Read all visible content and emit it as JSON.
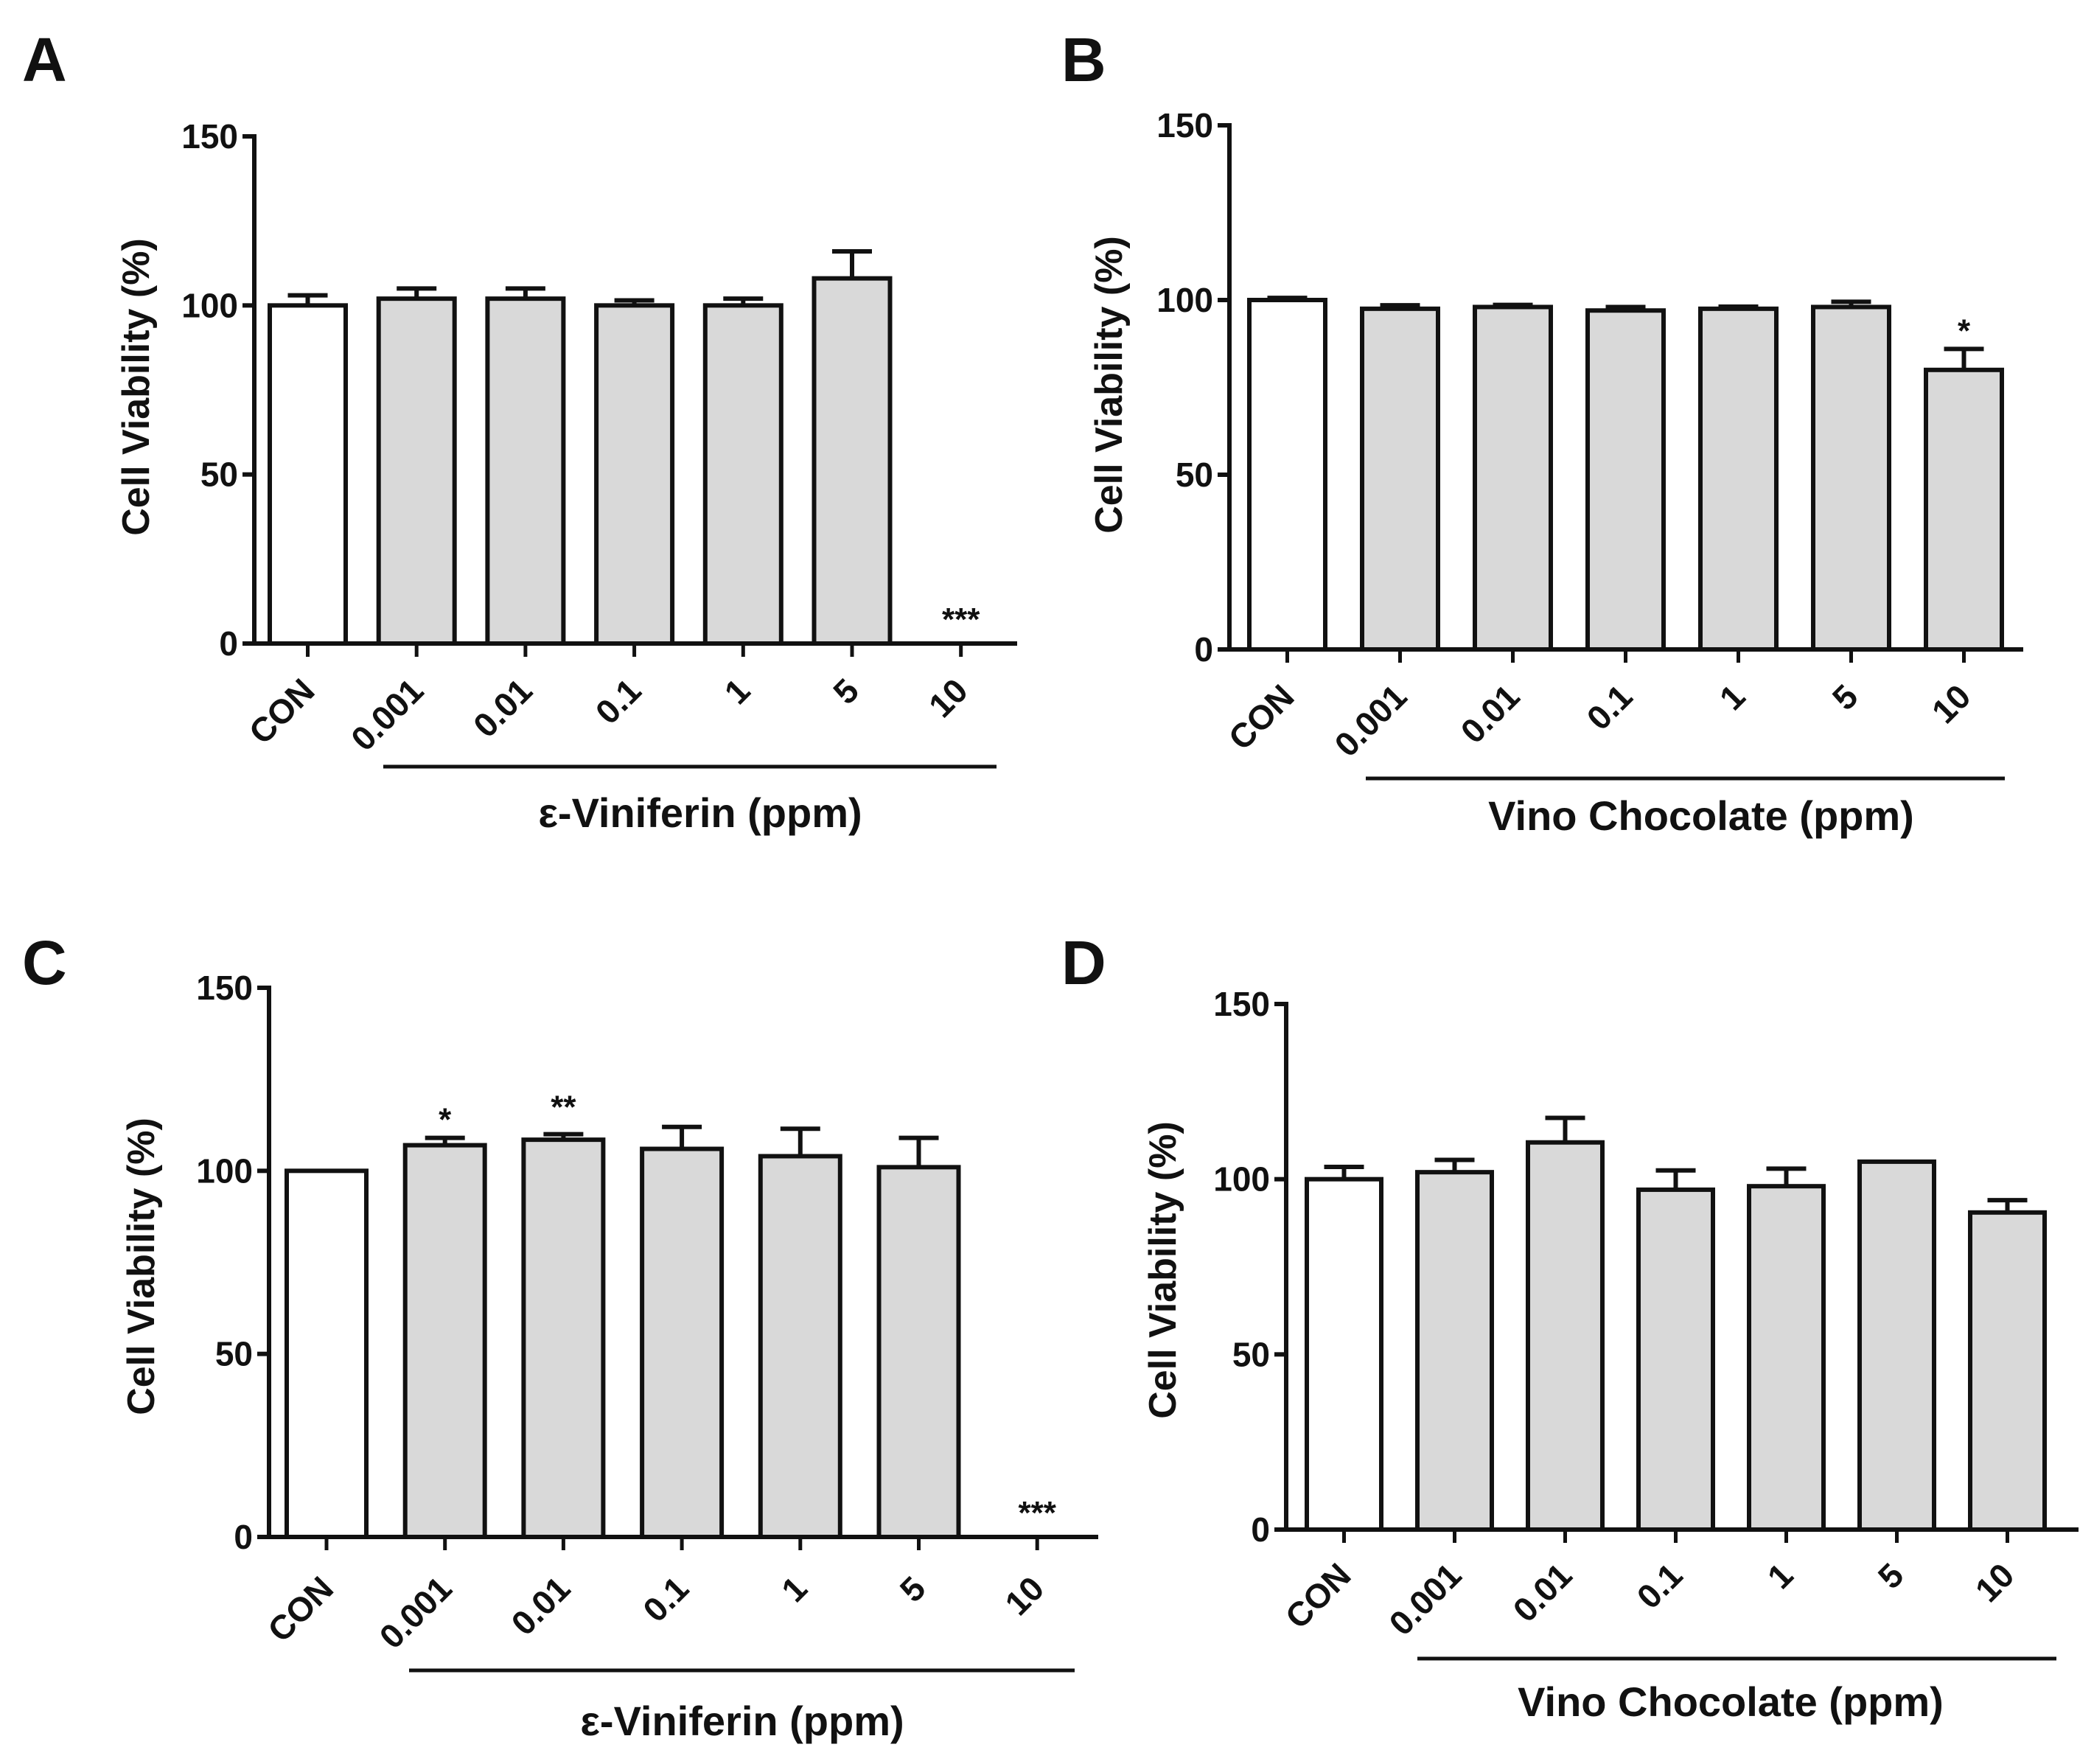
{
  "colors": {
    "control_fill": "#ffffff",
    "treatment_fill": "#d9d9d9",
    "stroke": "#111111"
  },
  "chart_data": [
    {
      "panel": "A",
      "type": "bar",
      "ylabel": "Cell Viability (%)",
      "yticks": [
        "0",
        "50",
        "100",
        "150"
      ],
      "ylim": [
        0,
        150
      ],
      "categories": [
        "CON",
        "0.001",
        "0.01",
        "0.1",
        "1",
        "5",
        "10"
      ],
      "values": [
        100,
        102,
        102,
        100,
        100,
        108,
        0
      ],
      "errors": [
        3,
        3,
        3,
        1.5,
        2,
        8,
        0
      ],
      "significance": [
        "",
        "",
        "",
        "",
        "",
        "",
        "***"
      ],
      "group_label": "ε-Viniferin (ppm)"
    },
    {
      "panel": "B",
      "type": "bar",
      "ylabel": "Cell Viability (%)",
      "yticks": [
        "0",
        "50",
        "100",
        "150"
      ],
      "ylim": [
        0,
        150
      ],
      "categories": [
        "CON",
        "0.001",
        "0.01",
        "0.1",
        "1",
        "5",
        "10"
      ],
      "values": [
        100,
        97.5,
        98,
        97,
        97.5,
        98,
        80
      ],
      "errors": [
        0.6,
        1,
        0.6,
        1,
        0.6,
        1.5,
        6
      ],
      "significance": [
        "",
        "",
        "",
        "",
        "",
        "",
        "*"
      ],
      "group_label": "Vino Chocolate (ppm)"
    },
    {
      "panel": "C",
      "type": "bar",
      "ylabel": "Cell Viability (%)",
      "yticks": [
        "0",
        "50",
        "100",
        "150"
      ],
      "ylim": [
        0,
        150
      ],
      "categories": [
        "CON",
        "0.001",
        "0.01",
        "0.1",
        "1",
        "5",
        "10"
      ],
      "values": [
        100,
        107,
        108.5,
        106,
        104,
        101,
        0
      ],
      "errors": [
        0,
        2,
        1.5,
        6,
        7.5,
        8,
        0
      ],
      "significance": [
        "",
        "*",
        "**",
        "",
        "",
        "",
        "***"
      ],
      "group_label": "ε-Viniferin (ppm)"
    },
    {
      "panel": "D",
      "type": "bar",
      "ylabel": "Cell Viability (%)",
      "yticks": [
        "0",
        "50",
        "100",
        "150"
      ],
      "ylim": [
        0,
        150
      ],
      "categories": [
        "CON",
        "0.001",
        "0.01",
        "0.1",
        "1",
        "5",
        "10"
      ],
      "values": [
        100,
        102,
        110.5,
        97,
        98,
        105,
        90.5
      ],
      "errors": [
        3.5,
        3.5,
        7,
        5.5,
        5,
        0,
        3.5
      ],
      "significance": [
        "",
        "",
        "",
        "",
        "",
        "",
        ""
      ],
      "group_label": "Vino Chocolate (ppm)"
    }
  ]
}
